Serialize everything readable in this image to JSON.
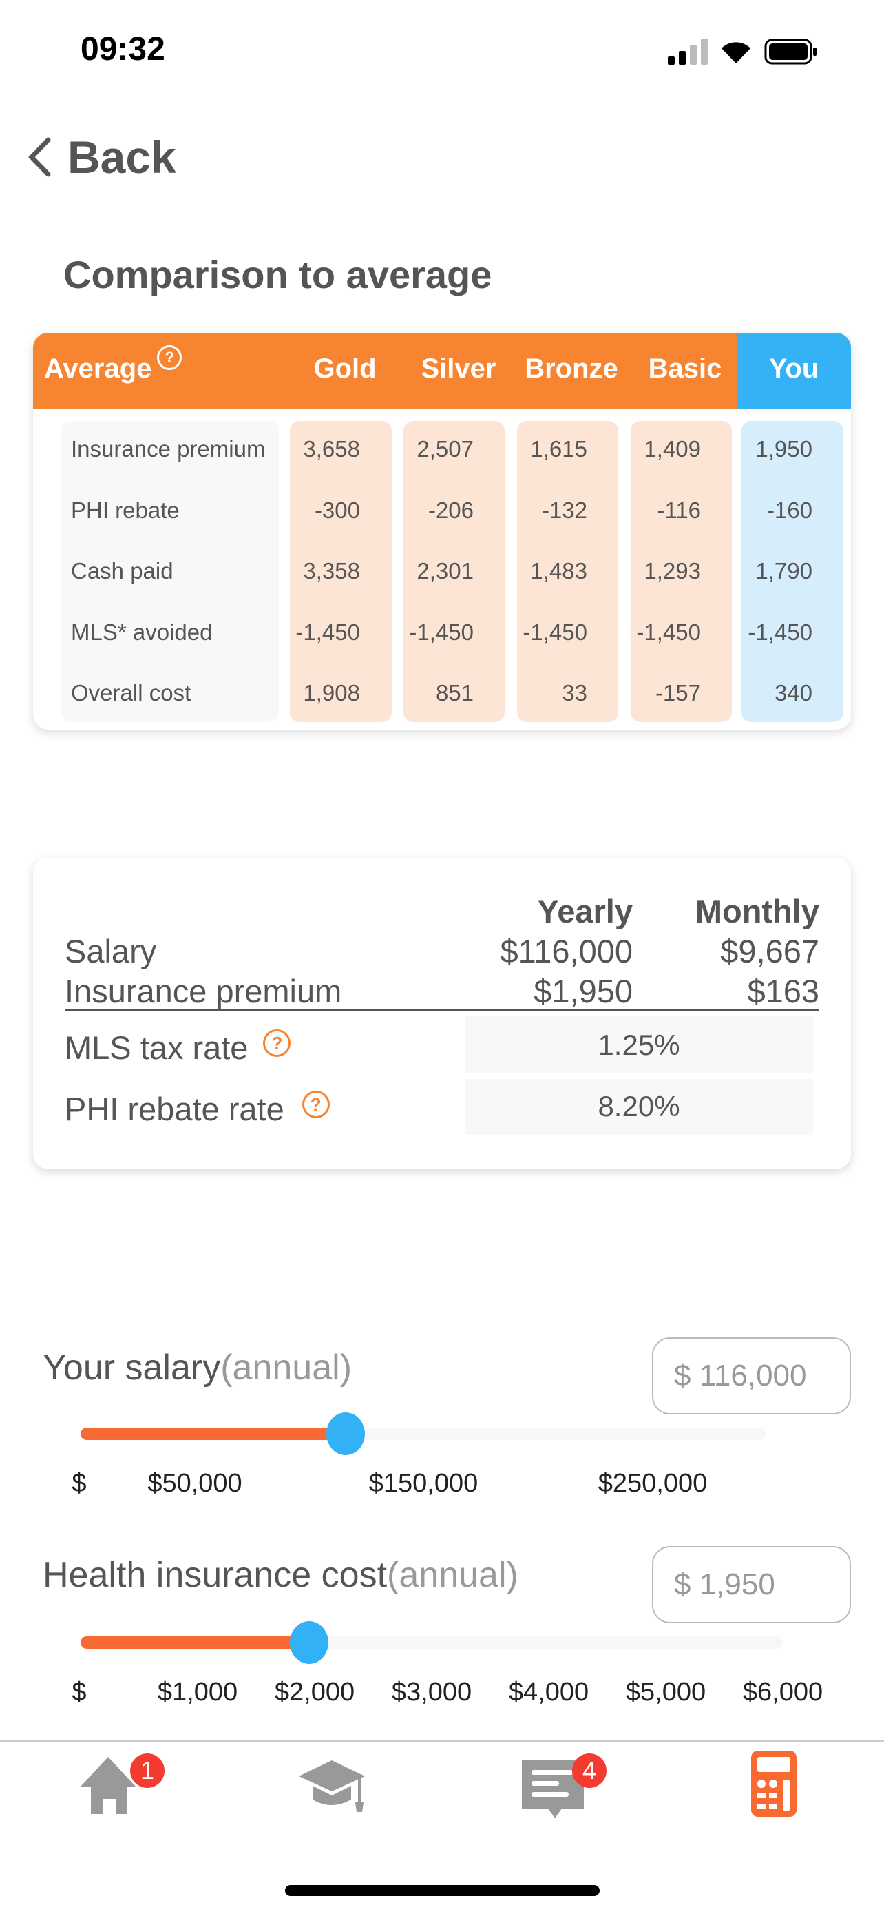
{
  "status_bar": {
    "time": "09:32"
  },
  "nav": {
    "back_label": "Back"
  },
  "section_title": "Comparison to average",
  "comparison": {
    "header": {
      "average": "Average",
      "columns": [
        "Gold",
        "Silver",
        "Bronze",
        "Basic",
        "You"
      ]
    },
    "rows": [
      {
        "label": "Insurance premium",
        "values": [
          "3,658",
          "2,507",
          "1,615",
          "1,409",
          "1,950"
        ]
      },
      {
        "label": "PHI rebate",
        "values": [
          "-300",
          "-206",
          "-132",
          "-116",
          "-160"
        ]
      },
      {
        "label": "Cash paid",
        "values": [
          "3,358",
          "2,301",
          "1,483",
          "1,293",
          "1,790"
        ]
      },
      {
        "label": "MLS* avoided",
        "values": [
          "-1,450",
          "-1,450",
          "-1,450",
          "-1,450",
          "-1,450"
        ]
      },
      {
        "label": "Overall cost",
        "values": [
          "1,908",
          "851",
          "33",
          "-157",
          "340"
        ]
      }
    ]
  },
  "summary": {
    "yearly_header": "Yearly",
    "monthly_header": "Monthly",
    "salary": {
      "label": "Salary",
      "yearly": "$116,000",
      "monthly": "$9,667"
    },
    "premium": {
      "label": "Insurance premium",
      "yearly": "$1,950",
      "monthly": "$163"
    },
    "mls": {
      "label": "MLS tax rate",
      "value": "1.25%"
    },
    "phi": {
      "label": "PHI rebate rate",
      "value": "8.20%"
    }
  },
  "salary_slider": {
    "label": "Your salary",
    "sub": "(annual)",
    "input_value": "$ 116,000",
    "fraction": 0.3867,
    "ticks": [
      "$",
      "$50,000",
      "$150,000",
      "$250,000"
    ]
  },
  "cost_slider": {
    "label": "Health insurance cost",
    "sub": "(annual)",
    "input_value": "$ 1,950",
    "fraction": 0.325,
    "ticks": [
      "$",
      "$1,000",
      "$2,000",
      "$3,000",
      "$4,000",
      "$5,000",
      "$6,000"
    ]
  },
  "tabbar": {
    "home_badge": "1",
    "messages_badge": "4"
  },
  "colors": {
    "orange": "#f78431",
    "blue": "#35b2f6",
    "slider_fill": "#f86a32",
    "badge": "#f33b30"
  }
}
